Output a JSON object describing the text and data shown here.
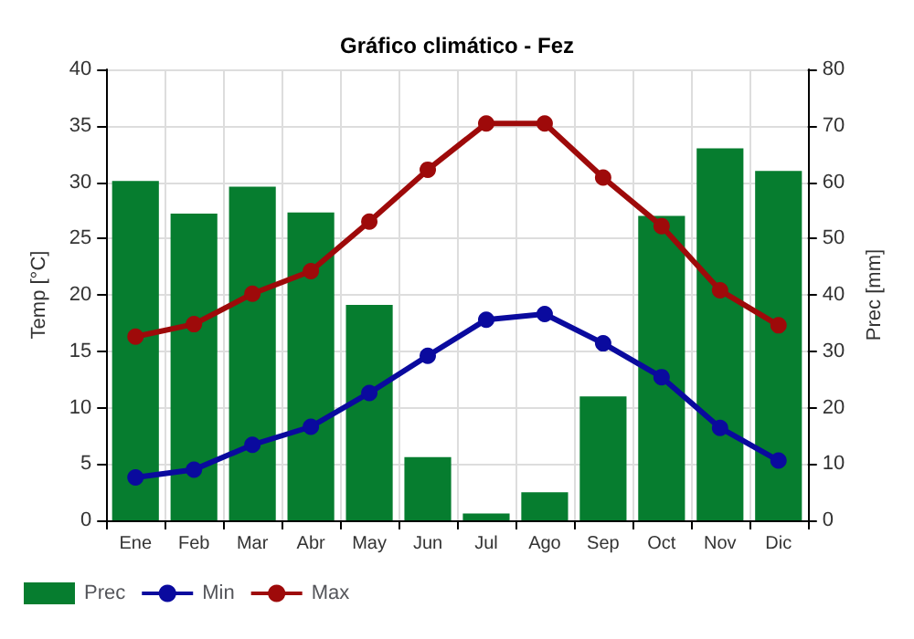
{
  "chart_data": {
    "type": "bar",
    "title": "Gráfico climático - Fez",
    "ylabel": "Temp [°C]",
    "y2label": "Prec [mm]",
    "categories": [
      "Ene",
      "Feb",
      "Mar",
      "Abr",
      "May",
      "Jun",
      "Jul",
      "Ago",
      "Sep",
      "Oct",
      "Nov",
      "Dic"
    ],
    "series": [
      {
        "name": "Prec",
        "axis": "y2",
        "color": "#067d2f",
        "values": [
          60.2,
          54.4,
          59.2,
          54.6,
          38.2,
          11.2,
          1.2,
          5,
          22,
          54,
          66,
          62
        ]
      },
      {
        "name": "Min",
        "type": "line",
        "color": "#0a0a9e",
        "values": [
          3.8,
          4.5,
          6.7,
          8.3,
          11.3,
          14.6,
          17.8,
          18.3,
          15.7,
          12.7,
          8.2,
          5.3
        ]
      },
      {
        "name": "Max",
        "type": "line",
        "color": "#9e0a0a",
        "values": [
          16.3,
          17.4,
          20.1,
          22.1,
          26.5,
          31.1,
          35.2,
          35.2,
          30.4,
          26.1,
          20.4,
          17.3
        ]
      }
    ],
    "ylim": [
      0,
      40
    ],
    "yticks": [
      0,
      5,
      10,
      15,
      20,
      25,
      30,
      35,
      40
    ],
    "y2lim": [
      0,
      80
    ],
    "y2ticks": [
      0,
      10,
      20,
      30,
      40,
      50,
      60,
      70,
      80
    ],
    "grid": true,
    "legend": "bottom left",
    "marker": "circle",
    "line_style": "solid"
  }
}
